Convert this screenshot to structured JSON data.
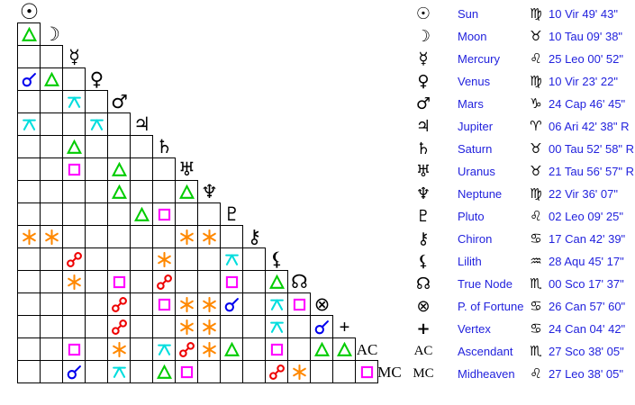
{
  "colors": {
    "background": "#ffffff",
    "grid_line": "#000000",
    "glyph_black": "#000000",
    "text_blue": "#2222dd",
    "conjunction": "#0000ee",
    "sextile": "#ff8800",
    "square": "#ff00ff",
    "trine": "#00cc00",
    "opposition": "#ee0000",
    "quincunx": "#00dddd"
  },
  "diagonal_labels": {
    "ascendant": "AC",
    "midheaven": "MC"
  },
  "chart_data": {
    "type": "table",
    "title": "Astrological aspect grid with planetary positions",
    "planets": [
      {
        "name": "Sun",
        "glyph": "☉",
        "sign_glyph": "♍",
        "position": "10 Vir 49' 43\""
      },
      {
        "name": "Moon",
        "glyph": "☽",
        "sign_glyph": "♉",
        "position": "10 Tau 09' 38\""
      },
      {
        "name": "Mercury",
        "glyph": "☿",
        "sign_glyph": "♌",
        "position": "25 Leo 00' 52\""
      },
      {
        "name": "Venus",
        "glyph": "♀",
        "sign_glyph": "♍",
        "position": "10 Vir 23' 22\""
      },
      {
        "name": "Mars",
        "glyph": "♂",
        "sign_glyph": "♑",
        "position": "24 Cap 46' 45\""
      },
      {
        "name": "Jupiter",
        "glyph": "♃",
        "sign_glyph": "♈",
        "position": "06 Ari 42' 38\" R"
      },
      {
        "name": "Saturn",
        "glyph": "♄",
        "sign_glyph": "♉",
        "position": "00 Tau 52' 58\" R"
      },
      {
        "name": "Uranus",
        "glyph": "♅",
        "sign_glyph": "♉",
        "position": "21 Tau 56' 57\" R"
      },
      {
        "name": "Neptune",
        "glyph": "♆",
        "sign_glyph": "♍",
        "position": "22 Vir 36' 07\""
      },
      {
        "name": "Pluto",
        "glyph": "♇",
        "sign_glyph": "♌",
        "position": "02 Leo 09' 25\""
      },
      {
        "name": "Chiron",
        "glyph": "⚷",
        "sign_glyph": "♋",
        "position": "17 Can 42' 39\""
      },
      {
        "name": "Lilith",
        "glyph": "⚸",
        "sign_glyph": "♒",
        "position": "28 Aqu 45' 17\""
      },
      {
        "name": "True Node",
        "glyph": "☊",
        "sign_glyph": "♏",
        "position": "00 Sco 17' 37\""
      },
      {
        "name": "P. of Fortune",
        "glyph": "⊗",
        "sign_glyph": "♋",
        "position": "26 Can 57' 60\""
      },
      {
        "name": "Vertex",
        "glyph": "+",
        "sign_glyph": "♋",
        "position": "24 Can 04' 42\""
      },
      {
        "name": "Ascendant",
        "glyph": "AC",
        "sign_glyph": "♏",
        "position": "27 Sco 38' 05\""
      },
      {
        "name": "Midheaven",
        "glyph": "MC",
        "sign_glyph": "♌",
        "position": "27 Leo 38' 05\""
      }
    ],
    "aspects": [
      {
        "planet1": "Moon",
        "planet2": "Sun",
        "aspect": "trine"
      },
      {
        "planet1": "Venus",
        "planet2": "Sun",
        "aspect": "conjunction"
      },
      {
        "planet1": "Venus",
        "planet2": "Moon",
        "aspect": "trine"
      },
      {
        "planet1": "Mars",
        "planet2": "Mercury",
        "aspect": "quincunx"
      },
      {
        "planet1": "Jupiter",
        "planet2": "Sun",
        "aspect": "quincunx"
      },
      {
        "planet1": "Jupiter",
        "planet2": "Venus",
        "aspect": "quincunx"
      },
      {
        "planet1": "Saturn",
        "planet2": "Mercury",
        "aspect": "trine"
      },
      {
        "planet1": "Uranus",
        "planet2": "Mercury",
        "aspect": "square"
      },
      {
        "planet1": "Uranus",
        "planet2": "Mars",
        "aspect": "trine"
      },
      {
        "planet1": "Neptune",
        "planet2": "Mars",
        "aspect": "trine"
      },
      {
        "planet1": "Neptune",
        "planet2": "Uranus",
        "aspect": "trine"
      },
      {
        "planet1": "Pluto",
        "planet2": "Jupiter",
        "aspect": "trine"
      },
      {
        "planet1": "Pluto",
        "planet2": "Saturn",
        "aspect": "square"
      },
      {
        "planet1": "Chiron",
        "planet2": "Sun",
        "aspect": "sextile"
      },
      {
        "planet1": "Chiron",
        "planet2": "Moon",
        "aspect": "sextile"
      },
      {
        "planet1": "Chiron",
        "planet2": "Uranus",
        "aspect": "sextile"
      },
      {
        "planet1": "Chiron",
        "planet2": "Neptune",
        "aspect": "sextile"
      },
      {
        "planet1": "Lilith",
        "planet2": "Mercury",
        "aspect": "opposition"
      },
      {
        "planet1": "Lilith",
        "planet2": "Saturn",
        "aspect": "sextile"
      },
      {
        "planet1": "Lilith",
        "planet2": "Pluto",
        "aspect": "quincunx"
      },
      {
        "planet1": "True Node",
        "planet2": "Mercury",
        "aspect": "sextile"
      },
      {
        "planet1": "True Node",
        "planet2": "Mars",
        "aspect": "square"
      },
      {
        "planet1": "True Node",
        "planet2": "Saturn",
        "aspect": "opposition"
      },
      {
        "planet1": "True Node",
        "planet2": "Pluto",
        "aspect": "square"
      },
      {
        "planet1": "True Node",
        "planet2": "Lilith",
        "aspect": "trine"
      },
      {
        "planet1": "P. of Fortune",
        "planet2": "Mars",
        "aspect": "opposition"
      },
      {
        "planet1": "P. of Fortune",
        "planet2": "Saturn",
        "aspect": "square"
      },
      {
        "planet1": "P. of Fortune",
        "planet2": "Uranus",
        "aspect": "sextile"
      },
      {
        "planet1": "P. of Fortune",
        "planet2": "Neptune",
        "aspect": "sextile"
      },
      {
        "planet1": "P. of Fortune",
        "planet2": "Pluto",
        "aspect": "conjunction"
      },
      {
        "planet1": "P. of Fortune",
        "planet2": "Lilith",
        "aspect": "quincunx"
      },
      {
        "planet1": "P. of Fortune",
        "planet2": "True Node",
        "aspect": "square"
      },
      {
        "planet1": "Vertex",
        "planet2": "Mars",
        "aspect": "opposition"
      },
      {
        "planet1": "Vertex",
        "planet2": "Uranus",
        "aspect": "sextile"
      },
      {
        "planet1": "Vertex",
        "planet2": "Neptune",
        "aspect": "sextile"
      },
      {
        "planet1": "Vertex",
        "planet2": "Lilith",
        "aspect": "quincunx"
      },
      {
        "planet1": "Vertex",
        "planet2": "P. of Fortune",
        "aspect": "conjunction"
      },
      {
        "planet1": "Ascendant",
        "planet2": "Mercury",
        "aspect": "square"
      },
      {
        "planet1": "Ascendant",
        "planet2": "Mars",
        "aspect": "sextile"
      },
      {
        "planet1": "Ascendant",
        "planet2": "Saturn",
        "aspect": "quincunx"
      },
      {
        "planet1": "Ascendant",
        "planet2": "Uranus",
        "aspect": "opposition"
      },
      {
        "planet1": "Ascendant",
        "planet2": "Neptune",
        "aspect": "sextile"
      },
      {
        "planet1": "Ascendant",
        "planet2": "Pluto",
        "aspect": "trine"
      },
      {
        "planet1": "Ascendant",
        "planet2": "Lilith",
        "aspect": "square"
      },
      {
        "planet1": "Ascendant",
        "planet2": "P. of Fortune",
        "aspect": "trine"
      },
      {
        "planet1": "Ascendant",
        "planet2": "Vertex",
        "aspect": "trine"
      },
      {
        "planet1": "Midheaven",
        "planet2": "Mercury",
        "aspect": "conjunction"
      },
      {
        "planet1": "Midheaven",
        "planet2": "Mars",
        "aspect": "quincunx"
      },
      {
        "planet1": "Midheaven",
        "planet2": "Saturn",
        "aspect": "trine"
      },
      {
        "planet1": "Midheaven",
        "planet2": "Uranus",
        "aspect": "square"
      },
      {
        "planet1": "Midheaven",
        "planet2": "Lilith",
        "aspect": "opposition"
      },
      {
        "planet1": "Midheaven",
        "planet2": "True Node",
        "aspect": "sextile"
      },
      {
        "planet1": "Midheaven",
        "planet2": "Ascendant",
        "aspect": "square"
      }
    ]
  }
}
